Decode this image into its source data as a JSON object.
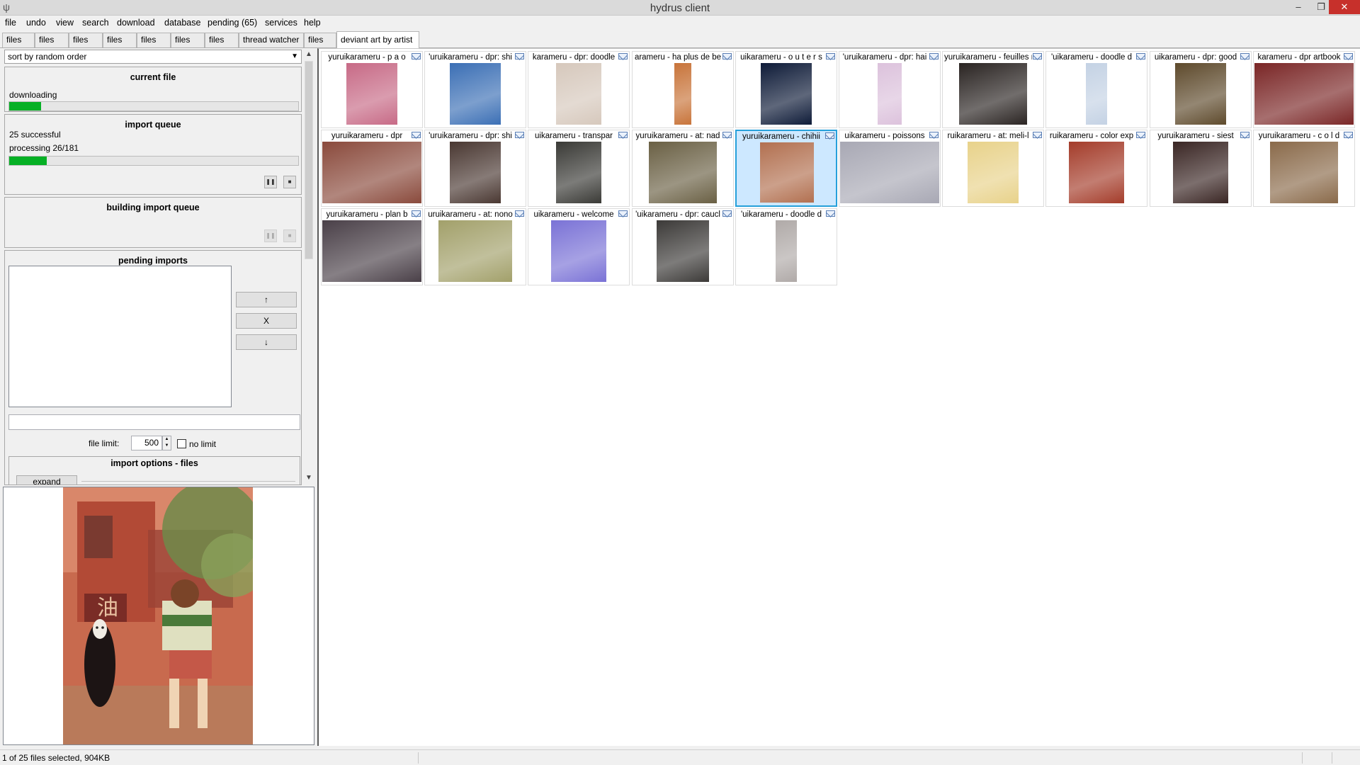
{
  "window": {
    "title": "hydrus client",
    "min": "–",
    "max": "❐",
    "close": "✕"
  },
  "menu": [
    "file",
    "undo",
    "view",
    "search",
    "download",
    "database",
    "pending (65)",
    "services",
    "help"
  ],
  "tabs": [
    "files",
    "files",
    "files",
    "files",
    "files",
    "files",
    "files",
    "thread watcher",
    "files",
    "deviant art by artist"
  ],
  "active_tab_index": 9,
  "sort": {
    "value": "sort by random order"
  },
  "current_file": {
    "heading": "current file",
    "status": "downloading",
    "progress": 0.11
  },
  "import_queue": {
    "heading": "import queue",
    "successful": "25 successful",
    "processing": "processing 26/181",
    "progress": 0.13
  },
  "building_queue": {
    "heading": "building import queue"
  },
  "pending_imports": {
    "heading": "pending imports",
    "up_label": "↑",
    "remove_label": "X",
    "down_label": "↓",
    "input_value": ""
  },
  "file_limit": {
    "label": "file limit:",
    "value": "500",
    "no_limit_label": "no limit",
    "no_limit_checked": false
  },
  "import_options": {
    "heading": "import options - files",
    "expand_label": "expand"
  },
  "thumbnails": [
    {
      "caption": "yuruikarameru - p a o",
      "color": "#c76a86",
      "selected": false
    },
    {
      "caption": "'uruikarameru - dpr: shi",
      "color": "#3b6fb5",
      "selected": false
    },
    {
      "caption": "karameru - dpr: doodle",
      "color": "#d6c8bc",
      "selected": false
    },
    {
      "caption": "arameru - ha plus de be",
      "color": "#c8743a",
      "selected": false
    },
    {
      "caption": "uikarameru - o u t e r s",
      "color": "#0e1b38",
      "selected": false
    },
    {
      "caption": "'uruikarameru - dpr: hai",
      "color": "#dcc2dc",
      "selected": false
    },
    {
      "caption": "yuruikarameru - feuilles m",
      "color": "#2a2422",
      "selected": false
    },
    {
      "caption": "'uikarameru - doodle d",
      "color": "#c4d2e4",
      "selected": false
    },
    {
      "caption": "uikarameru - dpr: good",
      "color": "#5e4a2c",
      "selected": false
    },
    {
      "caption": "karameru - dpr artbook",
      "color": "#7a2626",
      "selected": false
    },
    {
      "caption": "yuruikarameru - dpr",
      "color": "#8a4a3c",
      "selected": false
    },
    {
      "caption": "'uruikarameru - dpr: shi",
      "color": "#4a3832",
      "selected": false
    },
    {
      "caption": "uikarameru - transpar",
      "color": "#3a3a36",
      "selected": false
    },
    {
      "caption": "yuruikarameru - at: nad",
      "color": "#6a6044",
      "selected": false
    },
    {
      "caption": "yuruikarameru - chihii",
      "color": "#b27050",
      "selected": true
    },
    {
      "caption": "uikarameru - poissons",
      "color": "#a8a8b4",
      "selected": false
    },
    {
      "caption": "ruikarameru - at: meli-l",
      "color": "#e8d28a",
      "selected": false
    },
    {
      "caption": "ruikarameru - color exp",
      "color": "#a43c2a",
      "selected": false
    },
    {
      "caption": "yuruikarameru - siest",
      "color": "#3a2624",
      "selected": false
    },
    {
      "caption": "yuruikarameru - c o l d",
      "color": "#8a6a4a",
      "selected": false
    },
    {
      "caption": "yuruikarameru - plan b",
      "color": "#4a4048",
      "selected": false
    },
    {
      "caption": "uruikarameru - at: nono",
      "color": "#a2a06a",
      "selected": false
    },
    {
      "caption": "uikarameru - welcome",
      "color": "#7a72d6",
      "selected": false
    },
    {
      "caption": "'uikarameru - dpr: caucl",
      "color": "#3c3a38",
      "selected": false
    },
    {
      "caption": "'uikarameru - doodle d",
      "color": "#b0aaa8",
      "selected": false
    }
  ],
  "status": {
    "text": "1 of 25 files selected, 904KB"
  },
  "colors": {
    "progress": "#06b025",
    "selection": "#cde8ff",
    "selection_border": "#26a0da",
    "close_button": "#c7302b"
  }
}
